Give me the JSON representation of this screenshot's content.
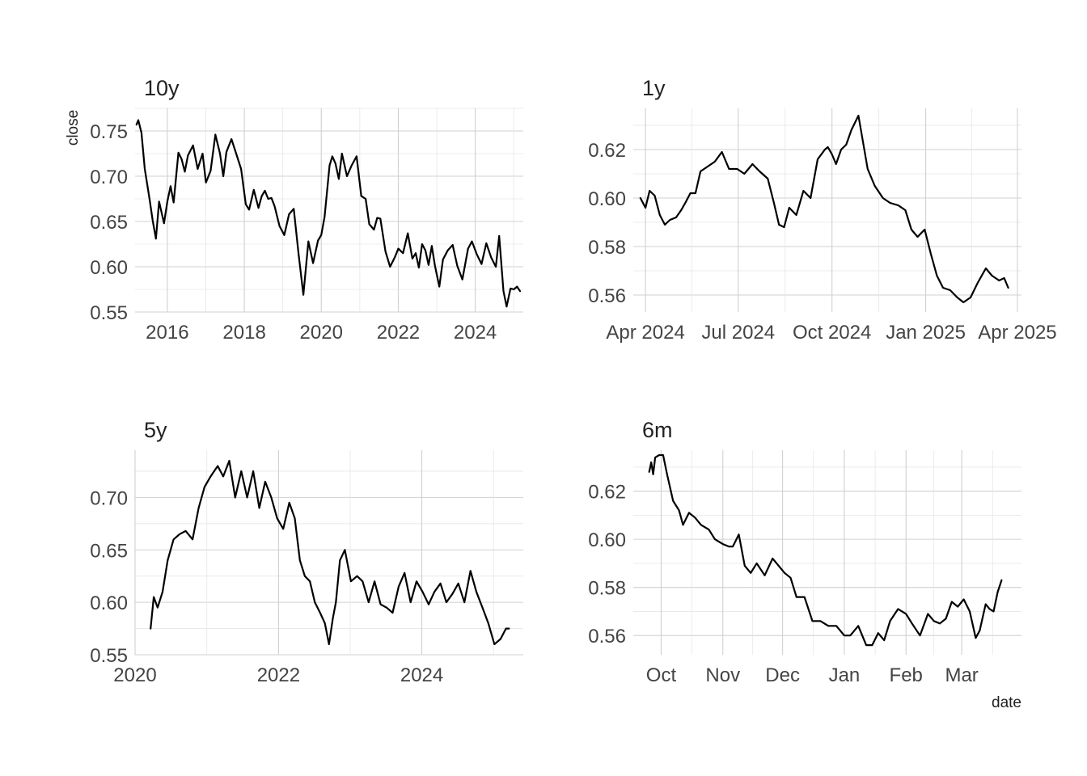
{
  "figure": {
    "ylabel": "close",
    "xlabel": "date",
    "line_color": "#000000",
    "grid_color": "#d0d0d0",
    "background": "#ffffff"
  },
  "chart_data": [
    {
      "type": "line",
      "title": "10y",
      "xlabel": "",
      "ylabel": "close",
      "xlim": [
        "2015-03-01",
        "2025-04-01"
      ],
      "ylim": [
        0.55,
        0.775
      ],
      "x_ticks": [
        {
          "value": "2016-01-01",
          "label": "2016"
        },
        {
          "value": "2018-01-01",
          "label": "2018"
        },
        {
          "value": "2020-01-01",
          "label": "2020"
        },
        {
          "value": "2022-01-01",
          "label": "2022"
        },
        {
          "value": "2024-01-01",
          "label": "2024"
        }
      ],
      "y_ticks": [
        {
          "value": 0.55,
          "label": "0.55"
        },
        {
          "value": 0.6,
          "label": "0.60"
        },
        {
          "value": 0.65,
          "label": "0.65"
        },
        {
          "value": 0.7,
          "label": "0.70"
        },
        {
          "value": 0.75,
          "label": "0.75"
        }
      ],
      "grid": true,
      "x": [
        "2015-03-15",
        "2015-04-01",
        "2015-05-01",
        "2015-06-01",
        "2015-07-15",
        "2015-08-15",
        "2015-09-15",
        "2015-10-15",
        "2015-12-01",
        "2016-01-01",
        "2016-02-01",
        "2016-03-01",
        "2016-04-15",
        "2016-05-15",
        "2016-06-15",
        "2016-07-15",
        "2016-09-01",
        "2016-10-15",
        "2016-12-01",
        "2017-01-01",
        "2017-02-15",
        "2017-04-01",
        "2017-05-15",
        "2017-06-15",
        "2017-07-15",
        "2017-09-01",
        "2017-10-15",
        "2017-12-01",
        "2018-01-15",
        "2018-02-15",
        "2018-04-01",
        "2018-05-15",
        "2018-06-15",
        "2018-07-15",
        "2018-08-15",
        "2018-09-15",
        "2018-10-15",
        "2018-12-01",
        "2019-01-15",
        "2019-03-01",
        "2019-04-15",
        "2019-06-01",
        "2019-07-15",
        "2019-09-01",
        "2019-10-15",
        "2019-12-01",
        "2020-01-01",
        "2020-02-01",
        "2020-03-01",
        "2020-03-20",
        "2020-04-15",
        "2020-05-15",
        "2020-06-15",
        "2020-07-15",
        "2020-09-01",
        "2020-10-15",
        "2020-12-01",
        "2021-01-15",
        "2021-02-25",
        "2021-04-01",
        "2021-05-15",
        "2021-06-15",
        "2021-07-15",
        "2021-09-01",
        "2021-10-15",
        "2021-12-01",
        "2022-01-01",
        "2022-02-15",
        "2022-04-01",
        "2022-05-15",
        "2022-06-15",
        "2022-07-15",
        "2022-08-15",
        "2022-09-15",
        "2022-10-15",
        "2022-11-15",
        "2022-12-15",
        "2023-01-25",
        "2023-03-01",
        "2023-04-15",
        "2023-06-01",
        "2023-07-15",
        "2023-09-01",
        "2023-10-25",
        "2023-12-01",
        "2024-01-15",
        "2024-03-01",
        "2024-04-15",
        "2024-06-01",
        "2024-07-15",
        "2024-08-15",
        "2024-09-25",
        "2024-10-25",
        "2024-12-01",
        "2025-01-01",
        "2025-02-01",
        "2025-03-01"
      ],
      "y": [
        0.757,
        0.762,
        0.748,
        0.708,
        0.676,
        0.651,
        0.631,
        0.672,
        0.648,
        0.672,
        0.689,
        0.671,
        0.726,
        0.719,
        0.705,
        0.723,
        0.734,
        0.708,
        0.725,
        0.693,
        0.706,
        0.746,
        0.725,
        0.7,
        0.727,
        0.741,
        0.725,
        0.708,
        0.669,
        0.663,
        0.685,
        0.665,
        0.678,
        0.684,
        0.675,
        0.676,
        0.667,
        0.645,
        0.635,
        0.658,
        0.664,
        0.613,
        0.569,
        0.628,
        0.604,
        0.629,
        0.635,
        0.655,
        0.689,
        0.712,
        0.722,
        0.714,
        0.697,
        0.725,
        0.7,
        0.712,
        0.722,
        0.678,
        0.675,
        0.647,
        0.641,
        0.654,
        0.653,
        0.617,
        0.6,
        0.611,
        0.62,
        0.615,
        0.637,
        0.609,
        0.615,
        0.599,
        0.625,
        0.618,
        0.602,
        0.623,
        0.601,
        0.578,
        0.608,
        0.618,
        0.624,
        0.601,
        0.586,
        0.62,
        0.628,
        0.614,
        0.603,
        0.626,
        0.61,
        0.6,
        0.634,
        0.573,
        0.556,
        0.576,
        0.575,
        0.578,
        0.573
      ]
    },
    {
      "type": "line",
      "title": "1y",
      "xlabel": "",
      "ylabel": "",
      "xlim": [
        "2024-03-20",
        "2025-04-05"
      ],
      "ylim": [
        0.553,
        0.637
      ],
      "x_ticks": [
        {
          "value": "2024-04-01",
          "label": "Apr 2024"
        },
        {
          "value": "2024-07-01",
          "label": "Jul 2024"
        },
        {
          "value": "2024-10-01",
          "label": "Oct 2024"
        },
        {
          "value": "2025-01-01",
          "label": "Jan 2025"
        },
        {
          "value": "2025-04-01",
          "label": "Apr 2025"
        }
      ],
      "y_ticks": [
        {
          "value": 0.56,
          "label": "0.56"
        },
        {
          "value": 0.58,
          "label": "0.58"
        },
        {
          "value": 0.6,
          "label": "0.60"
        },
        {
          "value": 0.62,
          "label": "0.62"
        }
      ],
      "grid": true,
      "x": [
        "2024-03-27",
        "2024-04-01",
        "2024-04-05",
        "2024-04-10",
        "2024-04-15",
        "2024-04-20",
        "2024-04-25",
        "2024-05-01",
        "2024-05-06",
        "2024-05-10",
        "2024-05-15",
        "2024-05-20",
        "2024-05-25",
        "2024-06-01",
        "2024-06-08",
        "2024-06-15",
        "2024-06-22",
        "2024-06-30",
        "2024-07-07",
        "2024-07-15",
        "2024-07-22",
        "2024-07-30",
        "2024-08-05",
        "2024-08-10",
        "2024-08-15",
        "2024-08-20",
        "2024-08-27",
        "2024-09-03",
        "2024-09-10",
        "2024-09-17",
        "2024-09-24",
        "2024-09-27",
        "2024-10-01",
        "2024-10-05",
        "2024-10-10",
        "2024-10-15",
        "2024-10-20",
        "2024-10-27",
        "2024-11-05",
        "2024-11-12",
        "2024-11-20",
        "2024-11-27",
        "2024-12-05",
        "2024-12-12",
        "2024-12-18",
        "2024-12-24",
        "2024-12-31",
        "2025-01-06",
        "2025-01-12",
        "2025-01-18",
        "2025-01-25",
        "2025-02-01",
        "2025-02-07",
        "2025-02-14",
        "2025-02-21",
        "2025-03-01",
        "2025-03-07",
        "2025-03-14",
        "2025-03-19",
        "2025-03-23"
      ],
      "y": [
        0.6,
        0.596,
        0.603,
        0.601,
        0.593,
        0.589,
        0.591,
        0.592,
        0.595,
        0.598,
        0.602,
        0.602,
        0.611,
        0.613,
        0.615,
        0.619,
        0.612,
        0.612,
        0.61,
        0.614,
        0.611,
        0.608,
        0.598,
        0.589,
        0.588,
        0.596,
        0.593,
        0.603,
        0.6,
        0.616,
        0.62,
        0.621,
        0.618,
        0.614,
        0.62,
        0.622,
        0.628,
        0.634,
        0.612,
        0.605,
        0.6,
        0.598,
        0.597,
        0.595,
        0.587,
        0.584,
        0.587,
        0.577,
        0.568,
        0.563,
        0.562,
        0.559,
        0.557,
        0.559,
        0.565,
        0.571,
        0.568,
        0.566,
        0.567,
        0.563
      ]
    },
    {
      "type": "line",
      "title": "5y",
      "xlabel": "",
      "ylabel": "",
      "xlim": [
        "2020-01-01",
        "2025-06-01"
      ],
      "ylim": [
        0.55,
        0.745
      ],
      "x_ticks": [
        {
          "value": "2020-01-01",
          "label": "2020"
        },
        {
          "value": "2022-01-01",
          "label": "2022"
        },
        {
          "value": "2024-01-01",
          "label": "2024"
        }
      ],
      "y_ticks": [
        {
          "value": 0.55,
          "label": "0.55"
        },
        {
          "value": 0.6,
          "label": "0.60"
        },
        {
          "value": 0.65,
          "label": "0.65"
        },
        {
          "value": 0.7,
          "label": "0.70"
        }
      ],
      "grid": true,
      "x": [
        "2020-03-20",
        "2020-04-05",
        "2020-04-25",
        "2020-05-20",
        "2020-06-15",
        "2020-07-15",
        "2020-08-15",
        "2020-09-15",
        "2020-10-20",
        "2020-11-20",
        "2020-12-20",
        "2021-01-20",
        "2021-02-25",
        "2021-03-25",
        "2021-04-25",
        "2021-05-25",
        "2021-06-25",
        "2021-07-25",
        "2021-08-25",
        "2021-09-25",
        "2021-10-25",
        "2021-11-25",
        "2021-12-25",
        "2022-01-25",
        "2022-02-25",
        "2022-03-25",
        "2022-04-20",
        "2022-05-15",
        "2022-06-10",
        "2022-07-05",
        "2022-08-01",
        "2022-08-25",
        "2022-09-15",
        "2022-10-05",
        "2022-10-20",
        "2022-11-10",
        "2022-12-05",
        "2023-01-05",
        "2023-02-05",
        "2023-03-05",
        "2023-04-05",
        "2023-05-05",
        "2023-06-05",
        "2023-07-05",
        "2023-08-05",
        "2023-09-05",
        "2023-10-05",
        "2023-11-05",
        "2023-12-05",
        "2024-01-05",
        "2024-02-05",
        "2024-03-05",
        "2024-04-05",
        "2024-05-05",
        "2024-06-05",
        "2024-07-05",
        "2024-08-05",
        "2024-09-05",
        "2024-10-05",
        "2024-11-05",
        "2024-12-05",
        "2025-01-05",
        "2025-02-05",
        "2025-03-05",
        "2025-03-20"
      ],
      "y": [
        0.575,
        0.605,
        0.595,
        0.61,
        0.64,
        0.66,
        0.665,
        0.668,
        0.66,
        0.69,
        0.71,
        0.72,
        0.73,
        0.72,
        0.735,
        0.7,
        0.725,
        0.7,
        0.725,
        0.69,
        0.715,
        0.7,
        0.68,
        0.67,
        0.695,
        0.68,
        0.64,
        0.625,
        0.62,
        0.6,
        0.59,
        0.58,
        0.56,
        0.585,
        0.6,
        0.64,
        0.65,
        0.62,
        0.625,
        0.62,
        0.6,
        0.62,
        0.598,
        0.595,
        0.59,
        0.615,
        0.628,
        0.6,
        0.62,
        0.61,
        0.598,
        0.61,
        0.618,
        0.6,
        0.608,
        0.618,
        0.6,
        0.63,
        0.61,
        0.595,
        0.58,
        0.56,
        0.565,
        0.575,
        0.575
      ]
    },
    {
      "type": "line",
      "title": "6m",
      "xlabel": "date",
      "ylabel": "",
      "xlim": [
        "2024-09-17",
        "2025-03-31"
      ],
      "ylim": [
        0.552,
        0.637
      ],
      "x_ticks": [
        {
          "value": "2024-10-01",
          "label": "Oct"
        },
        {
          "value": "2024-11-01",
          "label": "Nov"
        },
        {
          "value": "2024-12-01",
          "label": "Dec"
        },
        {
          "value": "2025-01-01",
          "label": "Jan"
        },
        {
          "value": "2025-02-01",
          "label": "Feb"
        },
        {
          "value": "2025-03-01",
          "label": "Mar"
        }
      ],
      "y_ticks": [
        {
          "value": 0.56,
          "label": "0.56"
        },
        {
          "value": 0.58,
          "label": "0.58"
        },
        {
          "value": 0.6,
          "label": "0.60"
        },
        {
          "value": 0.62,
          "label": "0.62"
        }
      ],
      "grid": true,
      "x": [
        "2024-09-25",
        "2024-09-26",
        "2024-09-27",
        "2024-09-28",
        "2024-09-30",
        "2024-10-02",
        "2024-10-04",
        "2024-10-07",
        "2024-10-10",
        "2024-10-12",
        "2024-10-15",
        "2024-10-18",
        "2024-10-21",
        "2024-10-25",
        "2024-10-28",
        "2024-11-01",
        "2024-11-04",
        "2024-11-06",
        "2024-11-09",
        "2024-11-12",
        "2024-11-15",
        "2024-11-18",
        "2024-11-22",
        "2024-11-26",
        "2024-11-29",
        "2024-12-02",
        "2024-12-05",
        "2024-12-08",
        "2024-12-12",
        "2024-12-16",
        "2024-12-20",
        "2024-12-24",
        "2024-12-28",
        "2025-01-01",
        "2025-01-04",
        "2025-01-08",
        "2025-01-12",
        "2025-01-15",
        "2025-01-18",
        "2025-01-21",
        "2025-01-24",
        "2025-01-28",
        "2025-02-01",
        "2025-02-04",
        "2025-02-08",
        "2025-02-12",
        "2025-02-15",
        "2025-02-18",
        "2025-02-21",
        "2025-02-24",
        "2025-02-27",
        "2025-03-02",
        "2025-03-05",
        "2025-03-08",
        "2025-03-10",
        "2025-03-13",
        "2025-03-15",
        "2025-03-17",
        "2025-03-19",
        "2025-03-21"
      ],
      "y": [
        0.628,
        0.632,
        0.627,
        0.634,
        0.635,
        0.635,
        0.627,
        0.616,
        0.612,
        0.606,
        0.611,
        0.609,
        0.606,
        0.604,
        0.6,
        0.598,
        0.597,
        0.597,
        0.602,
        0.589,
        0.586,
        0.59,
        0.585,
        0.592,
        0.589,
        0.586,
        0.584,
        0.576,
        0.576,
        0.566,
        0.566,
        0.564,
        0.564,
        0.56,
        0.56,
        0.564,
        0.556,
        0.556,
        0.561,
        0.558,
        0.566,
        0.571,
        0.569,
        0.565,
        0.56,
        0.569,
        0.566,
        0.565,
        0.567,
        0.574,
        0.572,
        0.575,
        0.57,
        0.559,
        0.562,
        0.573,
        0.571,
        0.57,
        0.578,
        0.583
      ]
    }
  ]
}
